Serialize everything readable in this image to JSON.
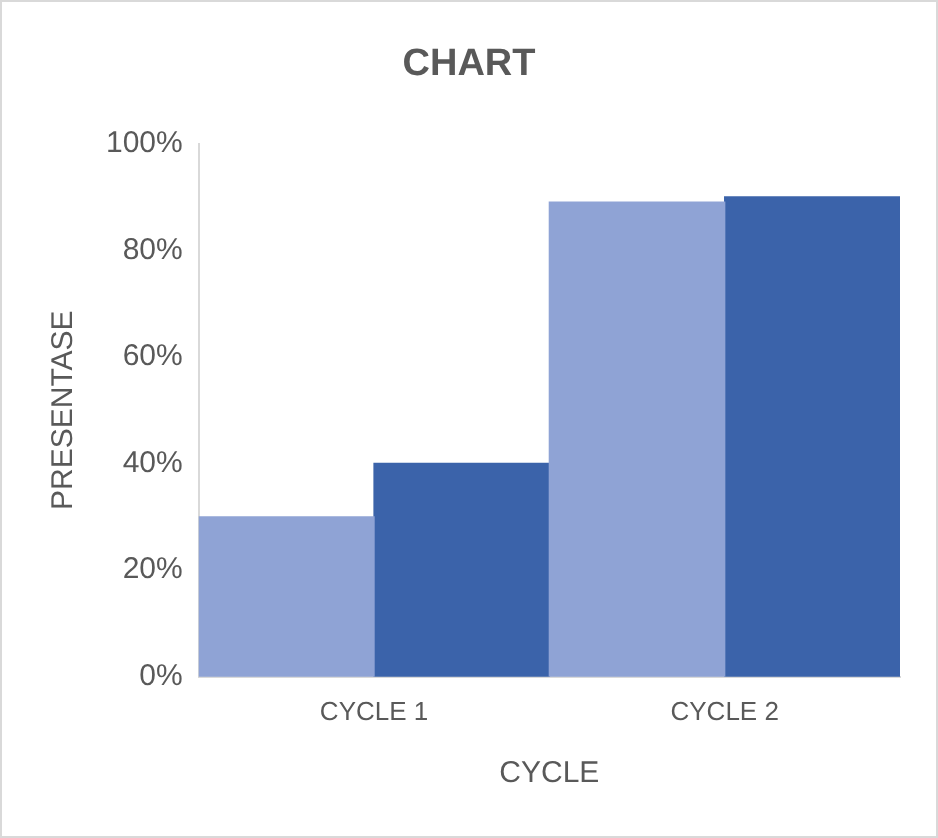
{
  "chart_data": {
    "type": "bar",
    "title": "CHART",
    "xlabel": "CYCLE",
    "ylabel": "PRESENTASE",
    "categories": [
      "CYCLE 1",
      "CYCLE 2"
    ],
    "series": [
      {
        "color": "#8fa3d5",
        "values": [
          30,
          89
        ]
      },
      {
        "color": "#3b63aa",
        "values": [
          40,
          90
        ]
      }
    ],
    "ylim": [
      0,
      100
    ],
    "yticks": [
      {
        "value": 0,
        "label": "0%"
      },
      {
        "value": 20,
        "label": "20%"
      },
      {
        "value": 40,
        "label": "40%"
      },
      {
        "value": 60,
        "label": "60%"
      },
      {
        "value": 80,
        "label": "80%"
      },
      {
        "value": 100,
        "label": "100%"
      }
    ],
    "grid": false,
    "legend": false
  }
}
